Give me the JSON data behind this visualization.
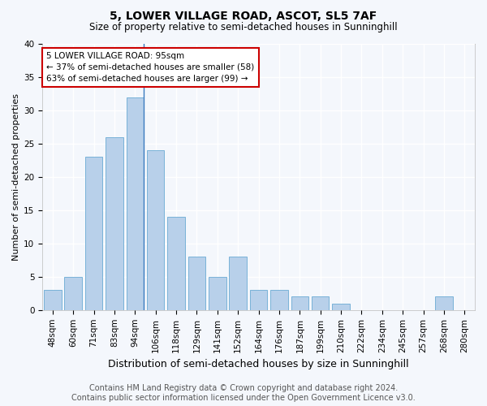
{
  "title": "5, LOWER VILLAGE ROAD, ASCOT, SL5 7AF",
  "subtitle": "Size of property relative to semi-detached houses in Sunninghill",
  "xlabel": "Distribution of semi-detached houses by size in Sunninghill",
  "ylabel": "Number of semi-detached properties",
  "categories": [
    "48sqm",
    "60sqm",
    "71sqm",
    "83sqm",
    "94sqm",
    "106sqm",
    "118sqm",
    "129sqm",
    "141sqm",
    "152sqm",
    "164sqm",
    "176sqm",
    "187sqm",
    "199sqm",
    "210sqm",
    "222sqm",
    "234sqm",
    "245sqm",
    "257sqm",
    "268sqm",
    "280sqm"
  ],
  "values": [
    3,
    5,
    23,
    26,
    32,
    24,
    14,
    8,
    5,
    8,
    3,
    3,
    2,
    2,
    1,
    0,
    0,
    0,
    0,
    2,
    0
  ],
  "bar_color": "#b8d0ea",
  "bar_edge_color": "#6aaad4",
  "subject_bar_index": 4,
  "annotation_box_text": "5 LOWER VILLAGE ROAD: 95sqm\n← 37% of semi-detached houses are smaller (58)\n63% of semi-detached houses are larger (99) →",
  "annotation_box_color": "#ffffff",
  "annotation_box_edge_color": "#cc0000",
  "ylim": [
    0,
    40
  ],
  "yticks": [
    0,
    5,
    10,
    15,
    20,
    25,
    30,
    35,
    40
  ],
  "footer_line1": "Contains HM Land Registry data © Crown copyright and database right 2024.",
  "footer_line2": "Contains public sector information licensed under the Open Government Licence v3.0.",
  "bg_color": "#f4f7fc",
  "plot_bg_color": "#f4f7fc",
  "grid_color": "#ffffff",
  "title_fontsize": 10,
  "subtitle_fontsize": 8.5,
  "xlabel_fontsize": 9,
  "ylabel_fontsize": 8,
  "tick_fontsize": 7.5,
  "footer_fontsize": 7,
  "vline_color": "#3a7abf"
}
